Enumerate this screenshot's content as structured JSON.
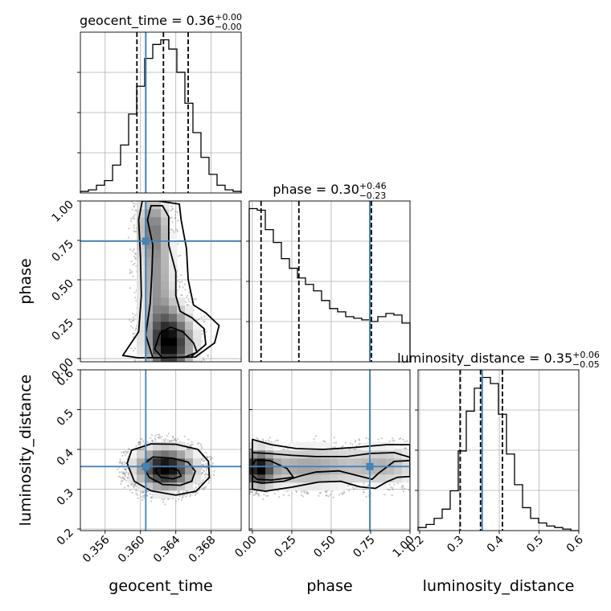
{
  "chart_data": {
    "type": "corner",
    "truth_color": "#4682b4",
    "params": [
      {
        "name": "geocent_time",
        "axis_label": "geocent_time",
        "title": {
          "text": "geocent_time = 0.36",
          "plus": "+0.00",
          "minus": "−0.00"
        },
        "range": [
          0.3532,
          0.3714
        ],
        "ticks": [
          0.356,
          0.36,
          0.364,
          0.368
        ],
        "tick_labels": [
          "0.356",
          "0.360",
          "0.364",
          "0.368"
        ],
        "truth": 0.3606,
        "quantiles": [
          0.3596,
          0.3626,
          0.3654
        ],
        "hist": [
          0.01,
          0.02,
          0.05,
          0.08,
          0.18,
          0.31,
          0.51,
          0.69,
          0.87,
          0.96,
          0.99,
          0.93,
          0.78,
          0.58,
          0.39,
          0.23,
          0.12,
          0.05,
          0.02,
          0.01
        ]
      },
      {
        "name": "phase",
        "axis_label": "phase",
        "title": {
          "text": "phase = 0.30",
          "plus": "+0.46",
          "minus": "−0.23"
        },
        "range": [
          -0.02,
          1.0
        ],
        "ticks": [
          0.0,
          0.25,
          0.5,
          0.75,
          1.0
        ],
        "tick_labels": [
          "0.00",
          "0.25",
          "0.50",
          "0.75",
          "1.00"
        ],
        "truth": 0.745,
        "quantiles": [
          0.055,
          0.295,
          0.755
        ],
        "hist": [
          0.95,
          0.94,
          0.82,
          0.74,
          0.64,
          0.58,
          0.52,
          0.48,
          0.44,
          0.38,
          0.33,
          0.31,
          0.28,
          0.27,
          0.26,
          0.25,
          0.28,
          0.3,
          0.29,
          0.24
        ]
      },
      {
        "name": "luminosity_distance",
        "axis_label": "luminosity_distance",
        "title": {
          "text": "luminosity_distance = 0.35",
          "plus": "+0.06",
          "minus": "−0.05"
        },
        "range": [
          0.196,
          0.6
        ],
        "ticks": [
          0.2,
          0.3,
          0.4,
          0.5,
          0.6
        ],
        "tick_labels": [
          "0.2",
          "0.3",
          "0.4",
          "0.5",
          "0.6"
        ],
        "truth": 0.357,
        "quantiles": [
          0.302,
          0.353,
          0.408
        ],
        "hist": [
          0.02,
          0.04,
          0.08,
          0.14,
          0.26,
          0.52,
          0.78,
          0.93,
          1.0,
          0.96,
          0.76,
          0.5,
          0.3,
          0.15,
          0.08,
          0.05,
          0.03,
          0.02,
          0.01,
          0.0
        ]
      }
    ],
    "grid": true,
    "panels": [
      {
        "x": "geocent_time",
        "y": "phase",
        "modes": [
          {
            "cx": 0.3633,
            "cy": 0.1,
            "sx": 0.0017,
            "sy": 0.14,
            "w": 1.0
          },
          {
            "cx": 0.3618,
            "cy": 0.5,
            "sx": 0.0013,
            "sy": 0.22,
            "w": 0.45
          },
          {
            "cx": 0.3613,
            "cy": 0.85,
            "sx": 0.0012,
            "sy": 0.13,
            "w": 0.45
          }
        ],
        "contours": [
          [
            [
              0.3625,
              0.005
            ],
            [
              0.365,
              0.01
            ],
            [
              0.3664,
              0.04
            ],
            [
              0.366,
              0.1
            ],
            [
              0.3648,
              0.17
            ],
            [
              0.3634,
              0.2
            ],
            [
              0.3622,
              0.16
            ],
            [
              0.3616,
              0.06
            ]
          ],
          [
            [
              0.3614,
              0.005
            ],
            [
              0.3657,
              0.01
            ],
            [
              0.3674,
              0.09
            ],
            [
              0.3672,
              0.19
            ],
            [
              0.3658,
              0.26
            ],
            [
              0.3645,
              0.3
            ],
            [
              0.364,
              0.4
            ],
            [
              0.364,
              0.55
            ],
            [
              0.3632,
              0.72
            ],
            [
              0.3632,
              0.9
            ],
            [
              0.3625,
              0.97
            ],
            [
              0.3612,
              0.97
            ],
            [
              0.3608,
              0.88
            ],
            [
              0.3614,
              0.72
            ],
            [
              0.3613,
              0.55
            ],
            [
              0.3611,
              0.35
            ],
            [
              0.3606,
              0.15
            ]
          ],
          [
            [
              0.3598,
              0.005
            ],
            [
              0.3662,
              0.01
            ],
            [
              0.3684,
              0.1
            ],
            [
              0.3689,
              0.21
            ],
            [
              0.3674,
              0.29
            ],
            [
              0.366,
              0.34
            ],
            [
              0.3654,
              0.5
            ],
            [
              0.3652,
              0.7
            ],
            [
              0.3646,
              0.88
            ],
            [
              0.3644,
              0.98
            ],
            [
              0.362,
              1.0
            ],
            [
              0.3602,
              1.0
            ],
            [
              0.3598,
              0.88
            ],
            [
              0.36,
              0.65
            ],
            [
              0.3601,
              0.4
            ],
            [
              0.3598,
              0.17
            ],
            [
              0.358,
              0.02
            ]
          ]
        ]
      },
      {
        "x": "geocent_time",
        "y": "luminosity_distance",
        "modes": [
          {
            "cx": 0.3628,
            "cy": 0.352,
            "sx": 0.0021,
            "sy": 0.034,
            "w": 1.0
          }
        ],
        "contours": [
          [
            [
              0.3617,
              0.345
            ],
            [
              0.3623,
              0.33
            ],
            [
              0.3637,
              0.326
            ],
            [
              0.3646,
              0.333
            ],
            [
              0.3643,
              0.347
            ],
            [
              0.363,
              0.357
            ],
            [
              0.3619,
              0.354
            ]
          ],
          [
            [
              0.3602,
              0.36
            ],
            [
              0.361,
              0.33
            ],
            [
              0.3625,
              0.312
            ],
            [
              0.3645,
              0.31
            ],
            [
              0.3658,
              0.32
            ],
            [
              0.3662,
              0.345
            ],
            [
              0.3654,
              0.368
            ],
            [
              0.3636,
              0.378
            ],
            [
              0.3614,
              0.381
            ]
          ],
          [
            [
              0.3585,
              0.365
            ],
            [
              0.3593,
              0.32
            ],
            [
              0.3612,
              0.296
            ],
            [
              0.364,
              0.285
            ],
            [
              0.3663,
              0.295
            ],
            [
              0.3678,
              0.33
            ],
            [
              0.3677,
              0.37
            ],
            [
              0.3665,
              0.4
            ],
            [
              0.364,
              0.413
            ],
            [
              0.3612,
              0.414
            ],
            [
              0.359,
              0.398
            ]
          ]
        ]
      },
      {
        "x": "phase",
        "y": "luminosity_distance",
        "modes": [
          {
            "cx": 0.04,
            "cy": 0.352,
            "sx": 0.06,
            "sy": 0.03,
            "w": 1.0
          },
          {
            "cx": 0.35,
            "cy": 0.355,
            "sx": 0.26,
            "sy": 0.035,
            "w": 0.5
          },
          {
            "cx": 0.85,
            "cy": 0.36,
            "sx": 0.14,
            "sy": 0.035,
            "w": 0.35
          }
        ],
        "contours": [
          [
            [
              0.0,
              0.335
            ],
            [
              0.03,
              0.325
            ],
            [
              0.12,
              0.323
            ],
            [
              0.26,
              0.33
            ],
            [
              0.22,
              0.352
            ],
            [
              0.11,
              0.372
            ],
            [
              0.02,
              0.373
            ],
            [
              0.0,
              0.36
            ]
          ],
          [
            [
              0.0,
              0.32
            ],
            [
              0.06,
              0.315
            ],
            [
              0.2,
              0.32
            ],
            [
              0.3,
              0.333
            ],
            [
              0.4,
              0.343
            ],
            [
              0.55,
              0.346
            ],
            [
              0.68,
              0.333
            ],
            [
              0.76,
              0.325
            ],
            [
              0.8,
              0.34
            ],
            [
              0.9,
              0.37
            ],
            [
              1.0,
              0.372
            ],
            [
              1.0,
              0.38
            ],
            [
              0.9,
              0.392
            ],
            [
              0.75,
              0.39
            ],
            [
              0.6,
              0.382
            ],
            [
              0.4,
              0.382
            ],
            [
              0.25,
              0.385
            ],
            [
              0.1,
              0.39
            ],
            [
              0.0,
              0.392
            ]
          ],
          [
            [
              0.0,
              0.3
            ],
            [
              0.08,
              0.295
            ],
            [
              0.25,
              0.305
            ],
            [
              0.42,
              0.318
            ],
            [
              0.56,
              0.32
            ],
            [
              0.68,
              0.306
            ],
            [
              0.78,
              0.302
            ],
            [
              0.85,
              0.318
            ],
            [
              0.92,
              0.33
            ],
            [
              1.0,
              0.332
            ],
            [
              1.0,
              0.412
            ],
            [
              0.85,
              0.412
            ],
            [
              0.65,
              0.405
            ],
            [
              0.45,
              0.4
            ],
            [
              0.28,
              0.402
            ],
            [
              0.12,
              0.412
            ],
            [
              0.0,
              0.425
            ]
          ]
        ]
      }
    ]
  }
}
